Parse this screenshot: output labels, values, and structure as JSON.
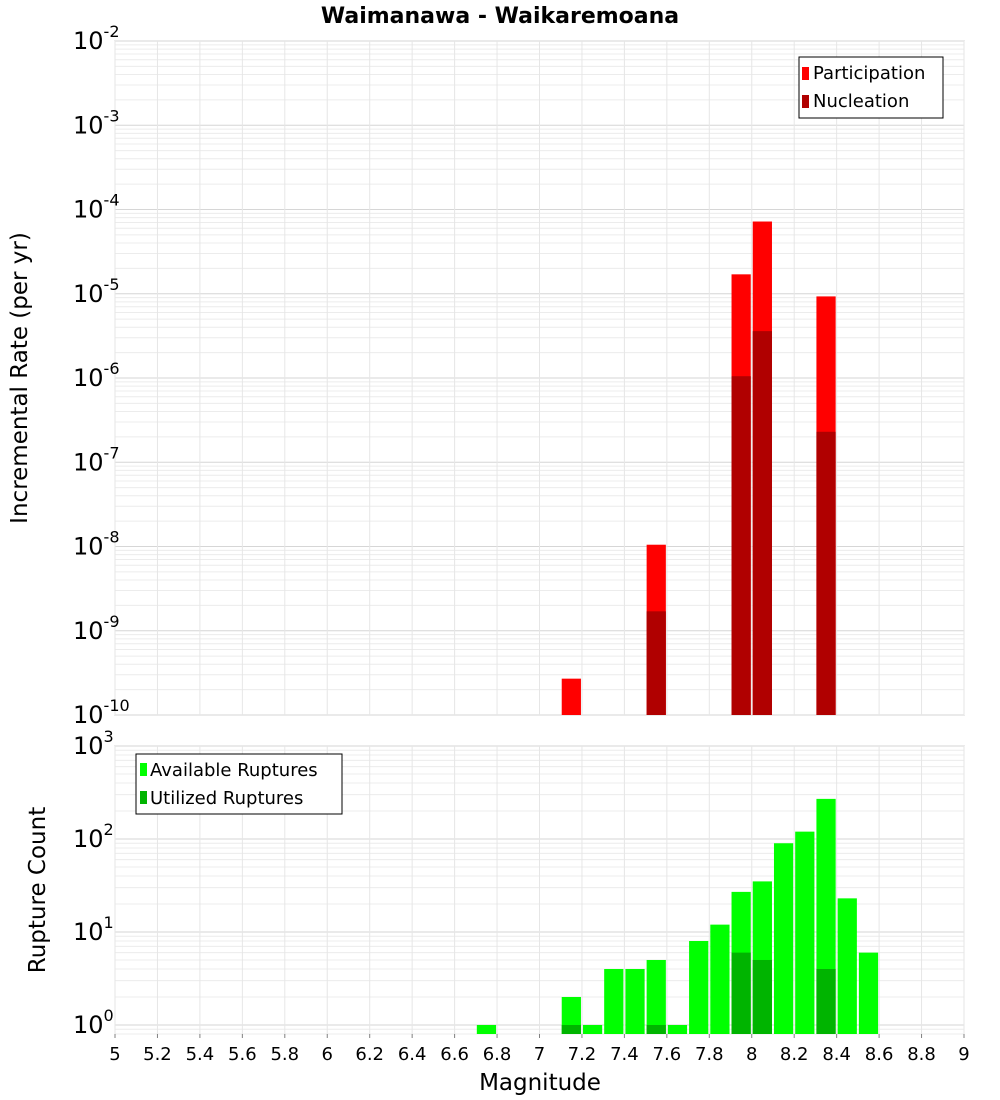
{
  "title": "Waimanawa - Waikaremoana",
  "chart_data": [
    {
      "type": "bar",
      "name": "rate-panel",
      "ylabel": "Incremental Rate (per yr)",
      "yscale": "log",
      "ylim": [
        1e-10,
        0.01
      ],
      "ytick_exponents": [
        "-2",
        "-3",
        "-4",
        "-5",
        "-6",
        "-7",
        "-8",
        "-9",
        "-10"
      ],
      "ytick_base": "10",
      "legend_position": "top-right",
      "grid": true,
      "bin_width": 0.1,
      "series": [
        {
          "name": "Participation",
          "color": "#ff0000",
          "points": [
            {
              "x": 7.15,
              "y": 2.7e-10
            },
            {
              "x": 7.55,
              "y": 1.05e-08
            },
            {
              "x": 7.95,
              "y": 1.7e-05
            },
            {
              "x": 8.05,
              "y": 7.2e-05
            },
            {
              "x": 8.35,
              "y": 9.3e-06
            }
          ]
        },
        {
          "name": "Nucleation",
          "color": "#b00000",
          "points": [
            {
              "x": 7.55,
              "y": 1.7e-09
            },
            {
              "x": 7.95,
              "y": 1.05e-06
            },
            {
              "x": 8.05,
              "y": 3.6e-06
            },
            {
              "x": 8.35,
              "y": 2.3e-07
            }
          ]
        }
      ]
    },
    {
      "type": "bar",
      "name": "count-panel",
      "ylabel": "Rupture Count",
      "xlabel": "Magnitude",
      "yscale": "log",
      "ylim": [
        0.8,
        1000
      ],
      "ytick_values": [
        1,
        10,
        100,
        1000
      ],
      "ytick_exponents": [
        "0",
        "1",
        "2",
        "3"
      ],
      "ytick_base": "10",
      "xlim": [
        5,
        9
      ],
      "xticks": [
        "5",
        "5.2",
        "5.4",
        "5.6",
        "5.8",
        "6",
        "6.2",
        "6.4",
        "6.6",
        "6.8",
        "7",
        "7.2",
        "7.4",
        "7.6",
        "7.8",
        "8",
        "8.2",
        "8.4",
        "8.6",
        "8.8",
        "9"
      ],
      "legend_position": "top-left",
      "grid": true,
      "bin_width": 0.1,
      "series": [
        {
          "name": "Available Ruptures",
          "color": "#00ff00",
          "points": [
            {
              "x": 6.75,
              "y": 1
            },
            {
              "x": 7.15,
              "y": 2
            },
            {
              "x": 7.25,
              "y": 1
            },
            {
              "x": 7.35,
              "y": 4
            },
            {
              "x": 7.45,
              "y": 4
            },
            {
              "x": 7.55,
              "y": 5
            },
            {
              "x": 7.65,
              "y": 1
            },
            {
              "x": 7.75,
              "y": 8
            },
            {
              "x": 7.85,
              "y": 12
            },
            {
              "x": 7.95,
              "y": 27
            },
            {
              "x": 8.05,
              "y": 35
            },
            {
              "x": 8.15,
              "y": 90
            },
            {
              "x": 8.25,
              "y": 120
            },
            {
              "x": 8.35,
              "y": 270
            },
            {
              "x": 8.45,
              "y": 23
            },
            {
              "x": 8.55,
              "y": 6
            }
          ]
        },
        {
          "name": "Utilized Ruptures",
          "color": "#00b400",
          "points": [
            {
              "x": 7.15,
              "y": 1
            },
            {
              "x": 7.55,
              "y": 1
            },
            {
              "x": 7.95,
              "y": 6
            },
            {
              "x": 8.05,
              "y": 5
            },
            {
              "x": 8.35,
              "y": 4
            }
          ]
        }
      ]
    }
  ]
}
